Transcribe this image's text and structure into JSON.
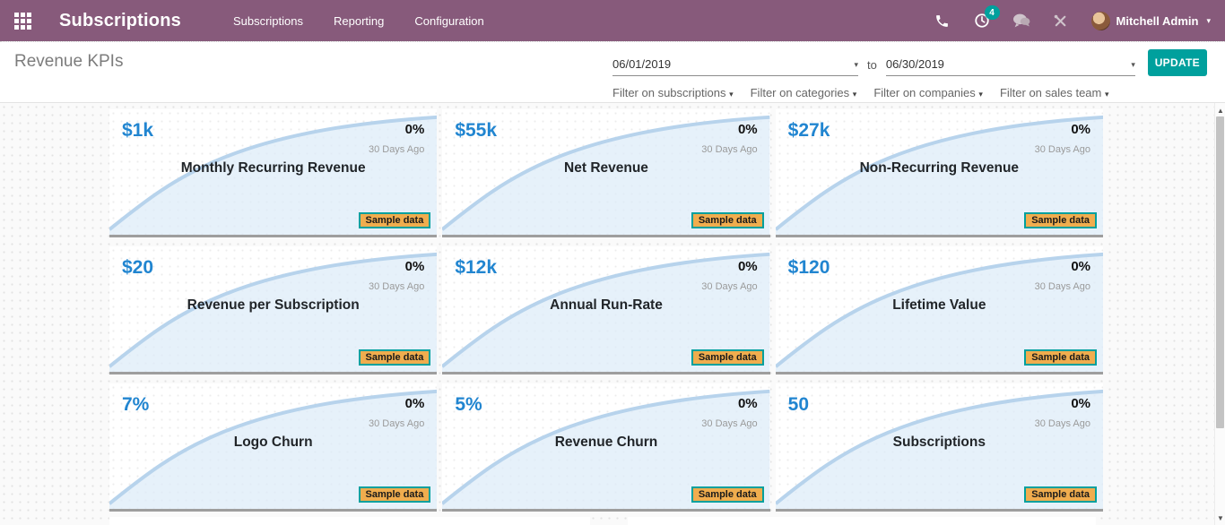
{
  "navbar": {
    "app_title": "Subscriptions",
    "menu": [
      "Subscriptions",
      "Reporting",
      "Configuration"
    ],
    "activity_count": "4",
    "user_name": "Mitchell Admin",
    "caret": "▾"
  },
  "header": {
    "title": "Revenue KPIs",
    "date_from": "06/01/2019",
    "to_label": "to",
    "date_to": "06/30/2019",
    "update_label": "UPDATE",
    "caret": "▾",
    "filters": [
      "Filter on subscriptions",
      "Filter on categories",
      "Filter on companies",
      "Filter on sales team"
    ]
  },
  "kpis": [
    {
      "value": "$1k",
      "title": "Monthly Recurring Revenue",
      "delta": "0%",
      "period": "30 Days Ago",
      "badge": "Sample data"
    },
    {
      "value": "$55k",
      "title": "Net Revenue",
      "delta": "0%",
      "period": "30 Days Ago",
      "badge": "Sample data"
    },
    {
      "value": "$27k",
      "title": "Non-Recurring Revenue",
      "delta": "0%",
      "period": "30 Days Ago",
      "badge": "Sample data"
    },
    {
      "value": "$20",
      "title": "Revenue per Subscription",
      "delta": "0%",
      "period": "30 Days Ago",
      "badge": "Sample data"
    },
    {
      "value": "$12k",
      "title": "Annual Run-Rate",
      "delta": "0%",
      "period": "30 Days Ago",
      "badge": "Sample data"
    },
    {
      "value": "$120",
      "title": "Lifetime Value",
      "delta": "0%",
      "period": "30 Days Ago",
      "badge": "Sample data"
    },
    {
      "value": "7%",
      "title": "Logo Churn",
      "delta": "0%",
      "period": "30 Days Ago",
      "badge": "Sample data"
    },
    {
      "value": "5%",
      "title": "Revenue Churn",
      "delta": "0%",
      "period": "30 Days Ago",
      "badge": "Sample data"
    },
    {
      "value": "50",
      "title": "Subscriptions",
      "delta": "0%",
      "period": "30 Days Ago",
      "badge": "Sample data"
    }
  ],
  "scrollbar": {
    "up_glyph": "▲",
    "down_glyph": "▼"
  },
  "colors": {
    "brand": "#875A7B",
    "accent": "#00A09D",
    "kpi_value_blue": "#2185d0",
    "badge_bg": "#f0ad4e",
    "spark_line": "#b7d3ec",
    "spark_fill": "#dcebf8"
  }
}
